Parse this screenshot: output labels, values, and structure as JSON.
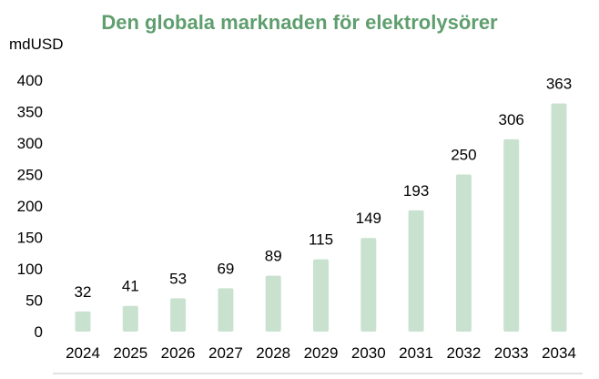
{
  "chart_data": {
    "type": "bar",
    "title": "Den globala marknaden för elektrolysörer",
    "ylabel": "mdUSD",
    "xlabel": "",
    "categories": [
      "2024",
      "2025",
      "2026",
      "2027",
      "2028",
      "2029",
      "2030",
      "2031",
      "2032",
      "2033",
      "2034"
    ],
    "values": [
      32,
      41,
      53,
      69,
      89,
      115,
      149,
      193,
      250,
      306,
      363
    ],
    "data_labels": [
      "32",
      "41",
      "53",
      "69",
      "89",
      "115",
      "149",
      "193",
      "250",
      "306",
      "363"
    ],
    "ylim": [
      0,
      400
    ],
    "yticks": [
      "0",
      "50",
      "100",
      "150",
      "200",
      "250",
      "300",
      "350",
      "400"
    ],
    "ytick_values": [
      0,
      50,
      100,
      150,
      200,
      250,
      300,
      350,
      400
    ],
    "grid": false,
    "legend": "none",
    "colors": {
      "bar": "#c9e2cf",
      "title": "#5f9e6e",
      "axis_line": "#d9d9d9"
    }
  }
}
